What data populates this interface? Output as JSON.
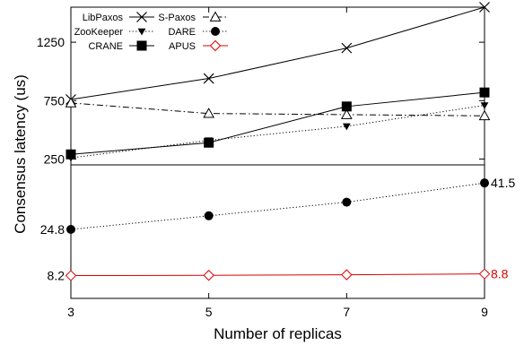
{
  "chart_data": {
    "type": "line",
    "title": "",
    "xlabel": "Number of replicas",
    "ylabel": "Consensus latency (us)",
    "x": [
      3,
      5,
      7,
      9
    ],
    "x_ticks": [
      "3",
      "5",
      "7",
      "9"
    ],
    "broken_y_axis": true,
    "upper_panel": {
      "ylim": [
        200,
        1550
      ],
      "y_ticks": [
        "250",
        "750",
        "1250"
      ],
      "series": [
        {
          "name": "LibPaxos",
          "values": [
            760,
            940,
            1200,
            1550
          ],
          "color": "#000000",
          "marker": "x",
          "line": "solid"
        },
        {
          "name": "S-Paxos",
          "values": [
            730,
            640,
            630,
            620
          ],
          "color": "#000000",
          "marker": "triangle-open",
          "line": "dashdot"
        },
        {
          "name": "ZooKeeper",
          "values": [
            260,
            410,
            530,
            710
          ],
          "color": "#000000",
          "marker": "triangle-down-filled",
          "line": "dotted"
        },
        {
          "name": "CRANE",
          "values": [
            290,
            390,
            700,
            820
          ],
          "color": "#000000",
          "marker": "square-filled",
          "line": "solid"
        }
      ]
    },
    "lower_panel": {
      "ylim": [
        0,
        48
      ],
      "y_ticks": [
        "8.2",
        "24.8"
      ],
      "series": [
        {
          "name": "DARE",
          "values": [
            24.8,
            29.7,
            34.6,
            41.5
          ],
          "color": "#000000",
          "marker": "circle-filled",
          "line": "dotted"
        },
        {
          "name": "APUS",
          "values": [
            8.2,
            8.3,
            8.5,
            8.8
          ],
          "color": "#dd0000",
          "marker": "diamond-open",
          "line": "solid"
        }
      ]
    },
    "annotations": [
      {
        "text": "41.5",
        "series": "DARE",
        "at_x": 9
      },
      {
        "text": "8.8",
        "series": "APUS",
        "at_x": 9
      }
    ],
    "legend": {
      "placement": "top-left",
      "entries": [
        "LibPaxos",
        "S-Paxos",
        "ZooKeeper",
        "DARE",
        "CRANE",
        "APUS"
      ]
    },
    "grid": false
  }
}
